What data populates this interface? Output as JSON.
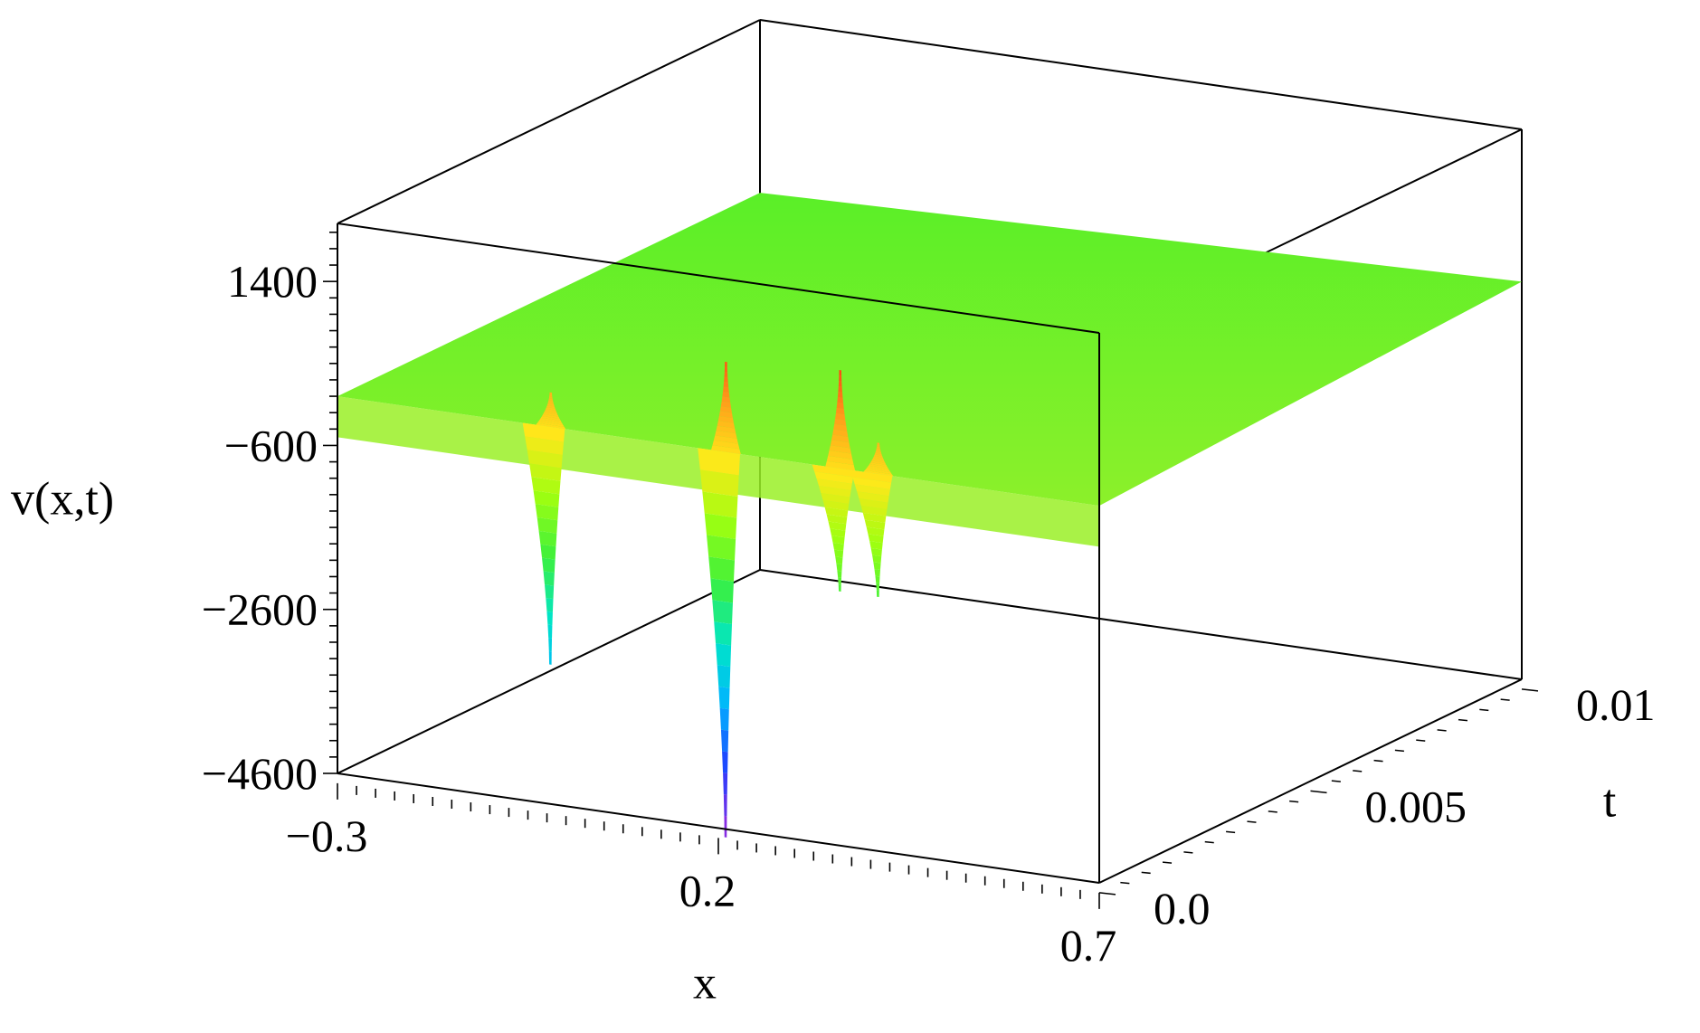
{
  "chart_data": {
    "type": "surface",
    "title": "",
    "xlabel": "x",
    "ylabel": "t",
    "zlabel": "v(x,t)",
    "x_range": [
      -0.3,
      0.7
    ],
    "t_range": [
      0.0,
      0.01
    ],
    "z_range": [
      -4600,
      1400
    ],
    "x_ticks": [
      {
        "value": -0.3,
        "label": "−0.3"
      },
      {
        "value": 0.2,
        "label": "0.2"
      },
      {
        "value": 0.7,
        "label": "0.7"
      }
    ],
    "t_ticks": [
      {
        "value": 0.0,
        "label": "0.0"
      },
      {
        "value": 0.005,
        "label": "0.005"
      },
      {
        "value": 0.01,
        "label": "0.01"
      }
    ],
    "z_ticks": [
      {
        "value": 1400,
        "label": "1400"
      },
      {
        "value": -600,
        "label": "−600"
      },
      {
        "value": -2600,
        "label": "−2600"
      },
      {
        "value": -4600,
        "label": "−4600"
      }
    ],
    "baseline_level": 0,
    "spikes": [
      {
        "x": -0.02,
        "t": 0.0,
        "max": 420,
        "min": -2900
      },
      {
        "x": 0.21,
        "t": 0.0,
        "max": 1100,
        "min": -4700
      },
      {
        "x": 0.36,
        "t": 0.0,
        "max": 1200,
        "min": -1500
      },
      {
        "x": 0.41,
        "t": 0.0,
        "max": 380,
        "min": -1500
      }
    ],
    "colormap": [
      "#8a2be2",
      "#2040ff",
      "#00b4ff",
      "#00e5c8",
      "#3cf03c",
      "#a0ff10",
      "#ffe81a",
      "#ff9a1a",
      "#ff2a10"
    ],
    "grid": false,
    "legend": "none"
  }
}
